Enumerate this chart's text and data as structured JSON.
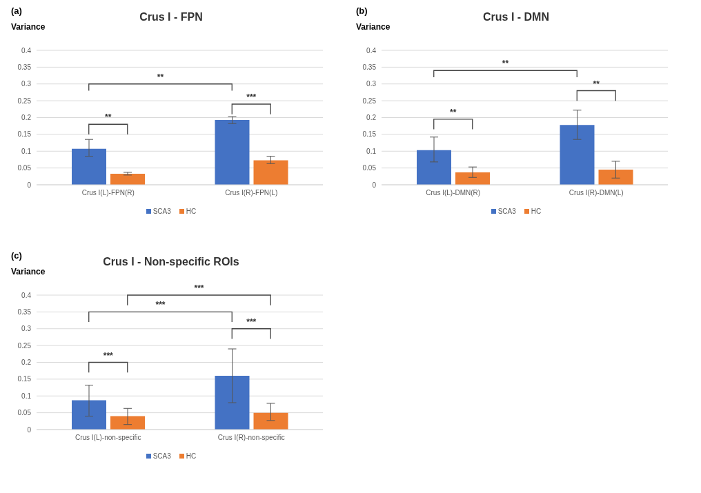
{
  "chart_data": [
    {
      "type": "bar",
      "title": "Crus I - FPN",
      "ylabel": "Variance",
      "annotations": [
        "(a)",
        "**",
        "***",
        "**"
      ],
      "categories": [
        "Crus I(L)-FPN(R)",
        "Crus I(R)-FPN(L)"
      ],
      "series": [
        {
          "name": "SCA3",
          "color": "#4472c4",
          "values": [
            0.107,
            0.193
          ],
          "errors": [
            [
              0.085,
              0.135
            ],
            [
              0.182,
              0.203
            ]
          ]
        },
        {
          "name": "HC",
          "color": "#ed7d31",
          "values": [
            0.033,
            0.073
          ],
          "errors": [
            [
              0.029,
              0.037
            ],
            [
              0.063,
              0.085
            ]
          ]
        }
      ],
      "ylim": [
        0,
        0.4
      ],
      "yticks": [
        0,
        0.05,
        0.1,
        0.15,
        0.2,
        0.25,
        0.3,
        0.35,
        0.4
      ],
      "grid": "y",
      "legend": "bottom"
    },
    {
      "type": "bar",
      "title": "Crus I - DMN",
      "ylabel": "Variance",
      "annotations": [
        "(b)",
        "**",
        "**",
        "**"
      ],
      "categories": [
        "Crus I(L)-DMN(R)",
        "Crus I(R)-DMN(L)"
      ],
      "series": [
        {
          "name": "SCA3",
          "color": "#4472c4",
          "values": [
            0.103,
            0.178
          ],
          "errors": [
            [
              0.068,
              0.142
            ],
            [
              0.135,
              0.222
            ]
          ]
        },
        {
          "name": "HC",
          "color": "#ed7d31",
          "values": [
            0.037,
            0.045
          ],
          "errors": [
            [
              0.022,
              0.053
            ],
            [
              0.02,
              0.07
            ]
          ]
        }
      ],
      "ylim": [
        0,
        0.4
      ],
      "yticks": [
        0,
        0.05,
        0.1,
        0.15,
        0.2,
        0.25,
        0.3,
        0.35,
        0.4
      ],
      "grid": "y",
      "legend": "bottom"
    },
    {
      "type": "bar",
      "title": "Crus I - Non-specific ROIs",
      "ylabel": "Variance",
      "annotations": [
        "(c)",
        "***",
        "***",
        "***",
        "***"
      ],
      "categories": [
        "Crus I(L)-non-specific",
        "Crus I(R)-non-specific"
      ],
      "series": [
        {
          "name": "SCA3",
          "color": "#4472c4",
          "values": [
            0.087,
            0.16
          ],
          "errors": [
            [
              0.04,
              0.132
            ],
            [
              0.08,
              0.24
            ]
          ]
        },
        {
          "name": "HC",
          "color": "#ed7d31",
          "values": [
            0.04,
            0.05
          ],
          "errors": [
            [
              0.015,
              0.063
            ],
            [
              0.027,
              0.078
            ]
          ]
        }
      ],
      "ylim": [
        0,
        0.4
      ],
      "yticks": [
        0,
        0.05,
        0.1,
        0.15,
        0.2,
        0.25,
        0.3,
        0.35,
        0.4
      ],
      "grid": "y",
      "legend": "bottom"
    }
  ]
}
